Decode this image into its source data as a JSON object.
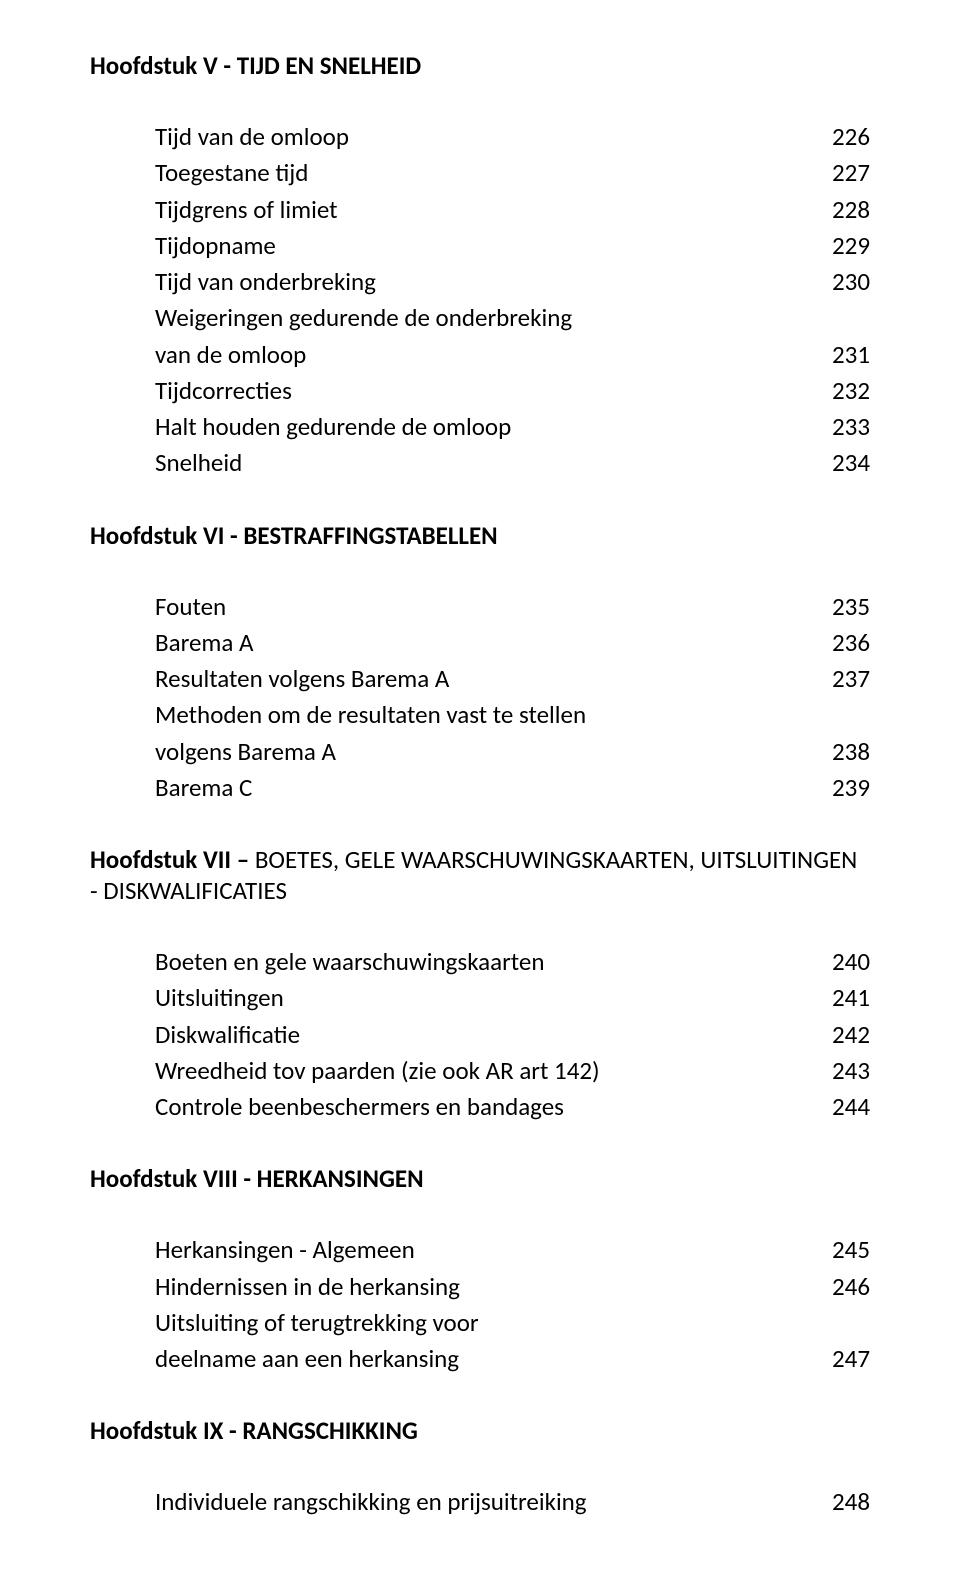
{
  "font_color": "#000000",
  "background_color": "#ffffff",
  "chapters": {
    "ch5": {
      "title": "Hoofdstuk V - TIJD EN SNELHEID",
      "items": [
        {
          "label": "Tijd van de omloop",
          "page": "226"
        },
        {
          "label": "Toegestane tijd",
          "page": "227"
        },
        {
          "label": "Tijdgrens of limiet",
          "page": "228"
        },
        {
          "label": "Tijdopname",
          "page": "229"
        },
        {
          "label": "Tijd van onderbreking",
          "page": "230"
        },
        {
          "label": "Weigeringen gedurende de onderbreking",
          "page": ""
        },
        {
          "label": "van de omloop",
          "page": "231"
        },
        {
          "label": "Tijdcorrecties",
          "page": "232"
        },
        {
          "label": "Halt houden gedurende de omloop",
          "page": "233"
        },
        {
          "label": "Snelheid",
          "page": "234"
        }
      ]
    },
    "ch6": {
      "title": "Hoofdstuk VI - BESTRAFFINGSTABELLEN",
      "items": [
        {
          "label": "Fouten",
          "page": "235"
        },
        {
          "label": "Barema A",
          "page": "236"
        },
        {
          "label": "Resultaten volgens Barema A",
          "page": "237"
        },
        {
          "label": "Methoden om de resultaten vast te stellen",
          "page": ""
        },
        {
          "label": "volgens Barema A",
          "page": "238"
        },
        {
          "label": "Barema C",
          "page": "239"
        }
      ]
    },
    "ch7": {
      "title_bold": "Hoofdstuk VII – ",
      "title_rest": "BOETES, GELE WAARSCHUWINGSKAARTEN, UITSLUITINGEN - DISKWALIFICATIES",
      "items": [
        {
          "label": "Boeten en gele waarschuwingskaarten",
          "page": "240"
        },
        {
          "label": "Uitsluitingen",
          "page": "241"
        },
        {
          "label": "Diskwalificatie",
          "page": "242"
        },
        {
          "label": "Wreedheid tov paarden (zie ook AR art 142)",
          "page": "243"
        },
        {
          "label": "Controle beenbeschermers en bandages",
          "page": "244"
        }
      ]
    },
    "ch8": {
      "title": "Hoofdstuk VIII - HERKANSINGEN",
      "items": [
        {
          "label": "Herkansingen - Algemeen",
          "page": "245"
        },
        {
          "label": "Hindernissen in de herkansing",
          "page": "246"
        },
        {
          "label": "Uitsluiting of terugtrekking voor",
          "page": ""
        },
        {
          "label": "deelname aan een herkansing",
          "page": "247"
        }
      ]
    },
    "ch9": {
      "title": "Hoofdstuk IX - RANGSCHIKKING",
      "items": [
        {
          "label": "Individuele rangschikking en prijsuitreiking",
          "page": "248"
        }
      ]
    }
  }
}
